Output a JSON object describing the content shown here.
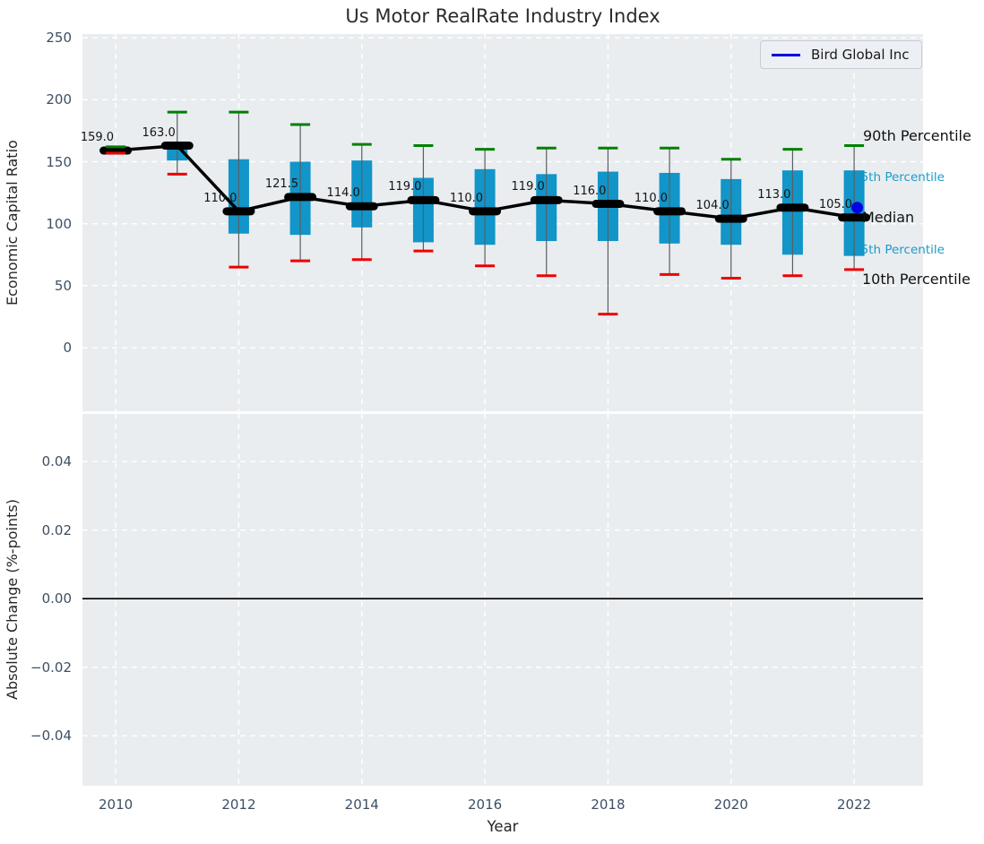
{
  "title": "Us Motor RealRate Industry Index",
  "legend": {
    "label": "Bird Global Inc",
    "line_color": "#0000e0"
  },
  "annotations": {
    "p90": "90th Percentile",
    "p75": "75th Percentile",
    "med": "Median",
    "p25": "25th Percentile",
    "p10": "10th Percentile"
  },
  "colors": {
    "box_fill": "#1295c8",
    "whisker": "#5a5f63",
    "cap_90th": "#008000",
    "cap_10th": "#ee0000",
    "median_line": "#000000",
    "company_dot": "#0000e0",
    "panel_bg": "#e9edf0",
    "grid": "#ffffff",
    "tick_text": "#3d4f63",
    "percentile_label": "#1b9cc9"
  },
  "chart_data": [
    {
      "type": "box",
      "title": "Us Motor RealRate Industry Index",
      "xlabel": "Year",
      "ylabel": "Economic Capital Ratio",
      "grid": true,
      "legend_position": "upper right",
      "xlim": [
        2009.46,
        2023.12
      ],
      "ylim": [
        -51.3,
        253
      ],
      "xticks": {
        "values": [
          2010,
          2012,
          2014,
          2016,
          2018,
          2020,
          2022
        ],
        "labels": [
          "2010",
          "2012",
          "2014",
          "2016",
          "2018",
          "2020",
          "2022"
        ]
      },
      "yticks": {
        "values": [
          250,
          200,
          150,
          100,
          50,
          0
        ],
        "labels": [
          "250",
          "200",
          "150",
          "100",
          "50",
          "0"
        ]
      },
      "boxes": [
        {
          "year": 2010,
          "median_label": "159.0",
          "median": 159,
          "q75": 160,
          "q25": 158,
          "q90": 162,
          "q10": 157
        },
        {
          "year": 2011,
          "median_label": "163.0",
          "median": 163,
          "q75": 163,
          "q25": 151,
          "q90": 190,
          "q10": 140
        },
        {
          "year": 2012,
          "median_label": "110.0",
          "median": 110,
          "q75": 152,
          "q25": 92,
          "q90": 190,
          "q10": 65
        },
        {
          "year": 2013,
          "median_label": "121.5",
          "median": 121.5,
          "q75": 150,
          "q25": 91,
          "q90": 180,
          "q10": 70
        },
        {
          "year": 2014,
          "median_label": "114.0",
          "median": 114,
          "q75": 151,
          "q25": 97,
          "q90": 164,
          "q10": 71
        },
        {
          "year": 2015,
          "median_label": "119.0",
          "median": 119,
          "q75": 137,
          "q25": 85,
          "q90": 163,
          "q10": 78
        },
        {
          "year": 2016,
          "median_label": "110.0",
          "median": 110,
          "q75": 144,
          "q25": 83,
          "q90": 160,
          "q10": 66
        },
        {
          "year": 2017,
          "median_label": "119.0",
          "median": 119,
          "q75": 140,
          "q25": 86,
          "q90": 161,
          "q10": 58
        },
        {
          "year": 2018,
          "median_label": "116.0",
          "median": 116,
          "q75": 142,
          "q25": 86,
          "q90": 161,
          "q10": 27
        },
        {
          "year": 2019,
          "median_label": "110.0",
          "median": 110,
          "q75": 141,
          "q25": 84,
          "q90": 161,
          "q10": 59
        },
        {
          "year": 2020,
          "median_label": "104.0",
          "median": 104,
          "q75": 136,
          "q25": 83,
          "q90": 152,
          "q10": 56
        },
        {
          "year": 2021,
          "median_label": "113.0",
          "median": 113,
          "q75": 143,
          "q25": 75,
          "q90": 160,
          "q10": 58
        },
        {
          "year": 2022,
          "median_label": "105.0",
          "median": 105,
          "q75": 143,
          "q25": 74,
          "q90": 163,
          "q10": 63
        }
      ],
      "company_point": {
        "name": "Bird Global Inc",
        "year": 2022.05,
        "value": 113
      }
    },
    {
      "type": "line",
      "xlabel": "Year",
      "ylabel": "Absolute Change (%-points)",
      "grid": true,
      "xlim": [
        2009.46,
        2023.12
      ],
      "ylim": [
        -0.0546,
        0.0539
      ],
      "xticks": {
        "values": [
          2010,
          2012,
          2014,
          2016,
          2018,
          2020,
          2022
        ],
        "labels": [
          "2010",
          "2012",
          "2014",
          "2016",
          "2018",
          "2020",
          "2022"
        ]
      },
      "yticks": {
        "values": [
          0.04,
          0.02,
          0,
          -0.02,
          -0.04
        ],
        "labels": [
          "0.04",
          "0.02",
          "0.00",
          "−0.02",
          "−0.04"
        ]
      },
      "zero_line": 0,
      "series": []
    }
  ]
}
